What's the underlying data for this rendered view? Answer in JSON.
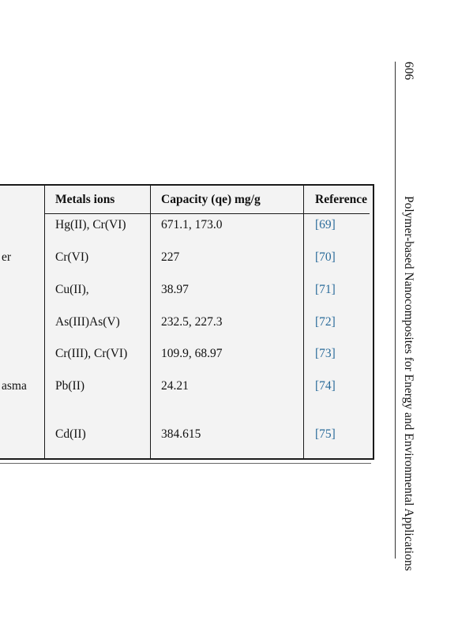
{
  "page_number": "606",
  "running_head": "Polymer-based Nanocomposites for Energy and Environmental Applications",
  "table": {
    "headers": {
      "metals": "Metals ions",
      "capacity": "Capacity (qe) mg/g",
      "reference": "Reference"
    },
    "rows": [
      {
        "fragment": "",
        "metals": "Hg(II), Cr(VI)",
        "capacity": "671.1, 173.0",
        "reference": "[69]"
      },
      {
        "fragment": "er",
        "metals": "Cr(VI)",
        "capacity": "227",
        "reference": "[70]"
      },
      {
        "fragment": "",
        "metals": "Cu(II),",
        "capacity": "38.97",
        "reference": "[71]"
      },
      {
        "fragment": "",
        "metals": "As(III)As(V)",
        "capacity": "232.5, 227.3",
        "reference": "[72]"
      },
      {
        "fragment": "",
        "metals": "Cr(III), Cr(VI)",
        "capacity": "109.9, 68.97",
        "reference": "[73]"
      },
      {
        "fragment": "asma",
        "metals": "Pb(II)",
        "capacity": "24.21",
        "reference": "[74]"
      },
      {
        "fragment": "",
        "metals": "Cd(II)",
        "capacity": "384.615",
        "reference": "[75]"
      }
    ]
  }
}
